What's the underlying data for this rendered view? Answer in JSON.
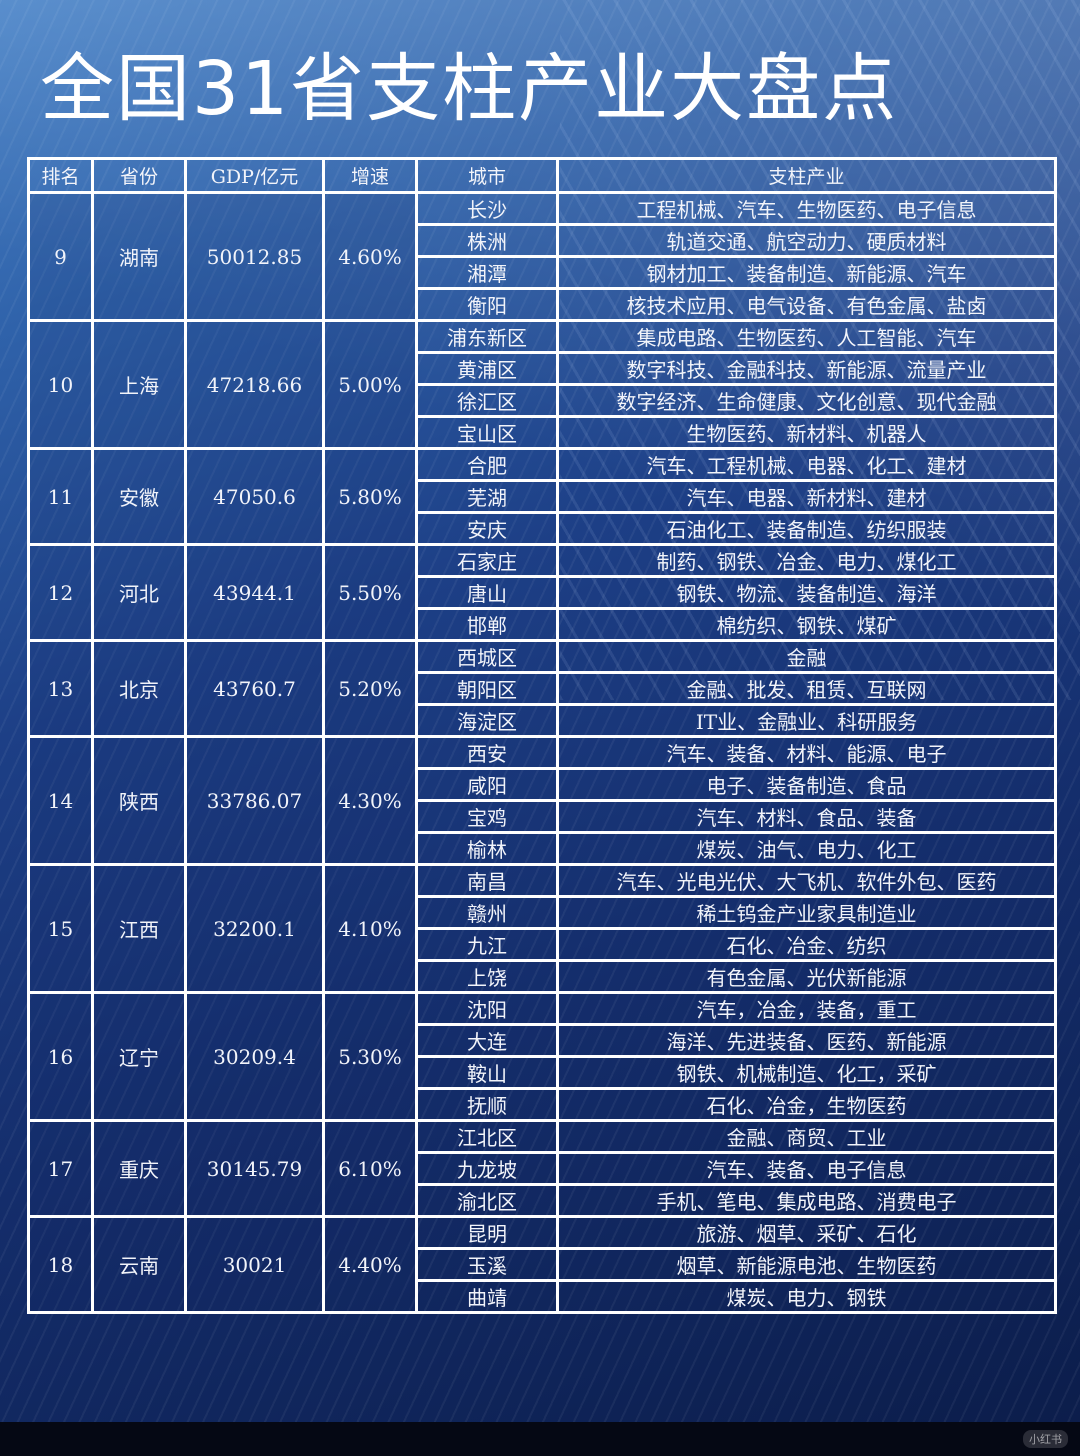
{
  "title": "全国31省支柱产业大盘点",
  "headers": {
    "rank": "排名",
    "province": "省份",
    "gdp": "GDP/亿元",
    "growth": "增速",
    "city": "城市",
    "industry": "支柱产业"
  },
  "provinces": [
    {
      "rank": "9",
      "province": "湖南",
      "gdp": "50012.85",
      "growth": "4.60%",
      "cities": [
        {
          "city": "长沙",
          "industry": "工程机械、汽车、生物医药、电子信息"
        },
        {
          "city": "株洲",
          "industry": "轨道交通、航空动力、硬质材料"
        },
        {
          "city": "湘潭",
          "industry": "钢材加工、装备制造、新能源、汽车"
        },
        {
          "city": "衡阳",
          "industry": "核技术应用、电气设备、有色金属、盐卤"
        }
      ]
    },
    {
      "rank": "10",
      "province": "上海",
      "gdp": "47218.66",
      "growth": "5.00%",
      "cities": [
        {
          "city": "浦东新区",
          "industry": "集成电路、生物医药、人工智能、汽车"
        },
        {
          "city": "黄浦区",
          "industry": "数字科技、金融科技、新能源、流量产业"
        },
        {
          "city": "徐汇区",
          "industry": "数字经济、生命健康、文化创意、现代金融"
        },
        {
          "city": "宝山区",
          "industry": "生物医药、新材料、机器人"
        }
      ]
    },
    {
      "rank": "11",
      "province": "安徽",
      "gdp": "47050.6",
      "growth": "5.80%",
      "cities": [
        {
          "city": "合肥",
          "industry": "汽车、工程机械、电器、化工、建材"
        },
        {
          "city": "芜湖",
          "industry": "汽车、电器、新材料、建材"
        },
        {
          "city": "安庆",
          "industry": "石油化工、装备制造、纺织服装"
        }
      ]
    },
    {
      "rank": "12",
      "province": "河北",
      "gdp": "43944.1",
      "growth": "5.50%",
      "cities": [
        {
          "city": "石家庄",
          "industry": "制药、钢铁、冶金、电力、煤化工"
        },
        {
          "city": "唐山",
          "industry": "钢铁、物流、装备制造、海洋"
        },
        {
          "city": "邯郸",
          "industry": "棉纺织、钢铁、煤矿"
        }
      ]
    },
    {
      "rank": "13",
      "province": "北京",
      "gdp": "43760.7",
      "growth": "5.20%",
      "cities": [
        {
          "city": "西城区",
          "industry": "金融"
        },
        {
          "city": "朝阳区",
          "industry": "金融、批发、租赁、互联网"
        },
        {
          "city": "海淀区",
          "industry": "IT业、金融业、科研服务"
        }
      ]
    },
    {
      "rank": "14",
      "province": "陕西",
      "gdp": "33786.07",
      "growth": "4.30%",
      "cities": [
        {
          "city": "西安",
          "industry": "汽车、装备、材料、能源、电子"
        },
        {
          "city": "咸阳",
          "industry": "电子、装备制造、食品"
        },
        {
          "city": "宝鸡",
          "industry": "汽车、材料、食品、装备"
        },
        {
          "city": "榆林",
          "industry": "煤炭、油气、电力、化工"
        }
      ]
    },
    {
      "rank": "15",
      "province": "江西",
      "gdp": "32200.1",
      "growth": "4.10%",
      "cities": [
        {
          "city": "南昌",
          "industry": "汽车、光电光伏、大飞机、软件外包、医药"
        },
        {
          "city": "赣州",
          "industry": "稀土钨金产业家具制造业"
        },
        {
          "city": "九江",
          "industry": "石化、冶金、纺织"
        },
        {
          "city": "上饶",
          "industry": "有色金属、光伏新能源"
        }
      ]
    },
    {
      "rank": "16",
      "province": "辽宁",
      "gdp": "30209.4",
      "growth": "5.30%",
      "cities": [
        {
          "city": "沈阳",
          "industry": "汽车，冶金，装备，重工"
        },
        {
          "city": "大连",
          "industry": "海洋、先进装备、医药、新能源"
        },
        {
          "city": "鞍山",
          "industry": "钢铁、机械制造、化工，采矿"
        },
        {
          "city": "抚顺",
          "industry": "石化、冶金，生物医药"
        }
      ]
    },
    {
      "rank": "17",
      "province": "重庆",
      "gdp": "30145.79",
      "growth": "6.10%",
      "cities": [
        {
          "city": "江北区",
          "industry": "金融、商贸、工业"
        },
        {
          "city": "九龙坡",
          "industry": "汽车、装备、电子信息"
        },
        {
          "city": "渝北区",
          "industry": "手机、笔电、集成电路、消费电子"
        }
      ]
    },
    {
      "rank": "18",
      "province": "云南",
      "gdp": "30021",
      "growth": "4.40%",
      "cities": [
        {
          "city": "昆明",
          "industry": "旅游、烟草、采矿、石化"
        },
        {
          "city": "玉溪",
          "industry": "烟草、新能源电池、生物医药"
        },
        {
          "city": "曲靖",
          "industry": "煤炭、电力、钢铁"
        }
      ]
    }
  ],
  "watermark": "小红书"
}
